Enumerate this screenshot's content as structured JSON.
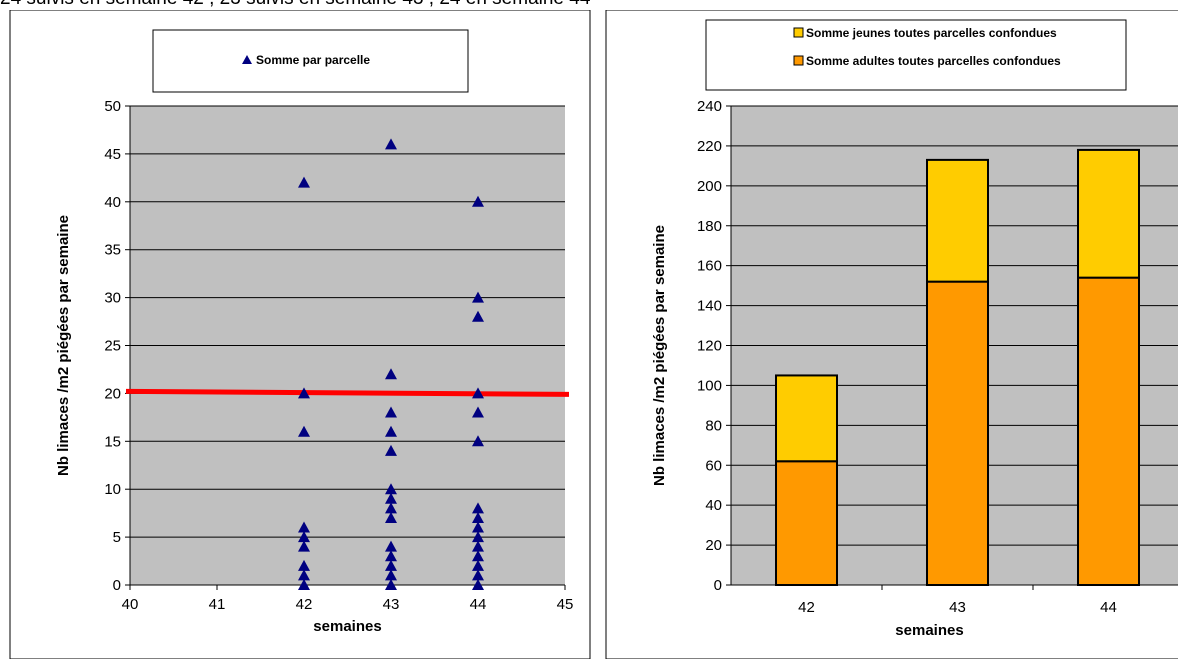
{
  "caption": "24 suivis en semaine 42 , 23 suivis en semaine 43 , 24 en semaine 44",
  "chart_data": [
    {
      "type": "scatter",
      "xlabel": "semaines",
      "ylabel": "Nb limaces  /m2 piégées  par semaine",
      "xlim": [
        40,
        45
      ],
      "ylim": [
        0,
        50
      ],
      "x_ticks": [
        40,
        41,
        42,
        43,
        44,
        45
      ],
      "y_ticks": [
        0,
        5,
        10,
        15,
        20,
        25,
        30,
        35,
        40,
        45,
        50
      ],
      "grid": true,
      "legend_position": "top",
      "series": [
        {
          "name": "Somme par parcelle",
          "color": "#000080",
          "marker": "triangle",
          "points": [
            [
              42,
              42
            ],
            [
              42,
              20
            ],
            [
              42,
              16
            ],
            [
              42,
              6
            ],
            [
              42,
              5
            ],
            [
              42,
              4
            ],
            [
              42,
              2
            ],
            [
              42,
              1
            ],
            [
              42,
              0
            ],
            [
              43,
              46
            ],
            [
              43,
              22
            ],
            [
              43,
              18
            ],
            [
              43,
              16
            ],
            [
              43,
              14
            ],
            [
              43,
              10
            ],
            [
              43,
              9
            ],
            [
              43,
              8
            ],
            [
              43,
              7
            ],
            [
              43,
              4
            ],
            [
              43,
              3
            ],
            [
              43,
              2
            ],
            [
              43,
              1
            ],
            [
              43,
              0
            ],
            [
              44,
              40
            ],
            [
              44,
              30
            ],
            [
              44,
              28
            ],
            [
              44,
              20
            ],
            [
              44,
              18
            ],
            [
              44,
              15
            ],
            [
              44,
              8
            ],
            [
              44,
              7
            ],
            [
              44,
              6
            ],
            [
              44,
              5
            ],
            [
              44,
              4
            ],
            [
              44,
              3
            ],
            [
              44,
              2
            ],
            [
              44,
              1
            ],
            [
              44,
              0
            ]
          ]
        }
      ],
      "reference_line": {
        "y": 20,
        "color": "#ff0000"
      }
    },
    {
      "type": "bar",
      "stacked": true,
      "xlabel": "semaines",
      "ylabel": "Nb limaces  /m2 piégées  par semaine",
      "ylim": [
        0,
        240
      ],
      "y_ticks": [
        0,
        20,
        40,
        60,
        80,
        100,
        120,
        140,
        160,
        180,
        200,
        220,
        240
      ],
      "grid": true,
      "legend_position": "top",
      "categories": [
        "42",
        "43",
        "44"
      ],
      "series": [
        {
          "name": "Somme adultes toutes parcelles confondues",
          "color": "#ff9900",
          "values": [
            62,
            152,
            154
          ]
        },
        {
          "name": "Somme jeunes toutes parcelles confondues",
          "color": "#ffcc00",
          "values": [
            43,
            61,
            64
          ]
        }
      ]
    }
  ]
}
